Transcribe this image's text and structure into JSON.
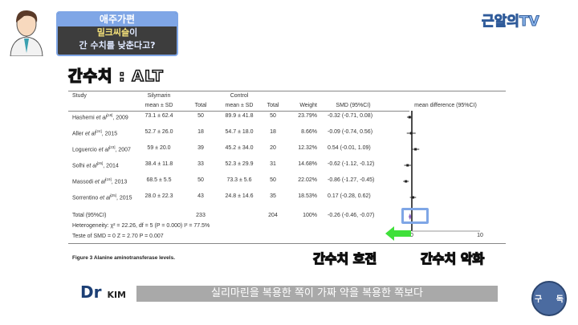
{
  "header": {
    "category": "애주가편",
    "title_line1_highlight": "밀크씨슬",
    "title_line1_rest": "이",
    "title_line2": "간 수치를 낮춘다고?",
    "section_label": "간수치 : ALT",
    "channel": "근알의TV"
  },
  "figure": {
    "headers": {
      "study": "Study",
      "group1": "Silymarin",
      "group2": "Control",
      "mean_sd": "mean ± SD",
      "total": "Total",
      "weight": "Weight",
      "smd": "SMD (95%CI)",
      "md": "mean difference (95%CI)"
    },
    "rows": [
      {
        "study": "Hashemi",
        "ref": "[18]",
        "year": ", 2009",
        "m1": "73.1 ± 62.4",
        "n1": "50",
        "m2": "89.9 ± 41.8",
        "n2": "50",
        "weight": "23.79%",
        "smd_text": "-0.32 (-0.71, 0.08)",
        "smd": -0.32,
        "lo": -0.71,
        "hi": 0.08
      },
      {
        "study": "Aller",
        "ref": "[24]",
        "year": ", 2015",
        "m1": "52.7 ± 26.0",
        "n1": "18",
        "m2": "54.7 ± 18.0",
        "n2": "18",
        "weight": "8.66%",
        "smd_text": "-0.09 (-0.74, 0.56)",
        "smd": -0.09,
        "lo": -0.74,
        "hi": 0.56
      },
      {
        "study": "Loguercio",
        "ref": "[23]",
        "year": ", 2007",
        "m1": "59 ± 20.0",
        "n1": "39",
        "m2": "45.2 ± 34.0",
        "n2": "20",
        "weight": "12.32%",
        "smd_text": "0.54 (-0.01, 1.09)",
        "smd": 0.54,
        "lo": -0.01,
        "hi": 1.09
      },
      {
        "study": "Solhi",
        "ref": "[26]",
        "year": ", 2014",
        "m1": "38.4 ± 11.8",
        "n1": "33",
        "m2": "52.3 ± 29.9",
        "n2": "31",
        "weight": "14.68%",
        "smd_text": "-0.62 (-1.12, -0.12)",
        "smd": -0.62,
        "lo": -1.12,
        "hi": -0.12
      },
      {
        "study": "Massodi",
        "ref": "[19]",
        "year": ", 2013",
        "m1": "68.5 ± 5.5",
        "n1": "50",
        "m2": "73.3 ± 5.6",
        "n2": "50",
        "weight": "22.02%",
        "smd_text": "-0.86 (-1.27, -0.45)",
        "smd": -0.86,
        "lo": -1.27,
        "hi": -0.45
      },
      {
        "study": "Sorrentino",
        "ref": "[25]",
        "year": ", 2015",
        "m1": "28.0 ± 22.3",
        "n1": "43",
        "m2": "24.8 ± 14.6",
        "n2": "35",
        "weight": "18.53%",
        "smd_text": "0.17 (-0.28, 0.62)",
        "smd": 0.17,
        "lo": -0.28,
        "hi": 0.62
      }
    ],
    "total": {
      "label": "Total (95%CI)",
      "n1": "233",
      "n2": "204",
      "weight": "100%",
      "smd_text": "-0.26 (-0.46, -0.07)",
      "smd": -0.26,
      "lo": -0.46,
      "hi": -0.07
    },
    "heterogeneity": "Heterogeneity: χ² = 22.26, df = 5 (P = 0.000) I² = 77.5%",
    "test": "Teste of SMD = 0 Z = 2.70 P = 0.007",
    "axis_ticks": [
      "0",
      "10"
    ],
    "caption": "Figure 3 Alanine aminotransferase levels."
  },
  "annotations": {
    "left_prefix": "간수치",
    "left_word": "호전",
    "right_prefix": "간수치",
    "right_word": "악화",
    "arrow_color": "#3fe03a",
    "box_color": "#7fa6e6"
  },
  "footer": {
    "logo_main": "Dr",
    "logo_sub": "KIM",
    "subtitle": "실리마린을 복용한 쪽이 가짜 약을 복용한 쪽보다",
    "subscribe_left": "구",
    "subscribe_right": "독"
  }
}
